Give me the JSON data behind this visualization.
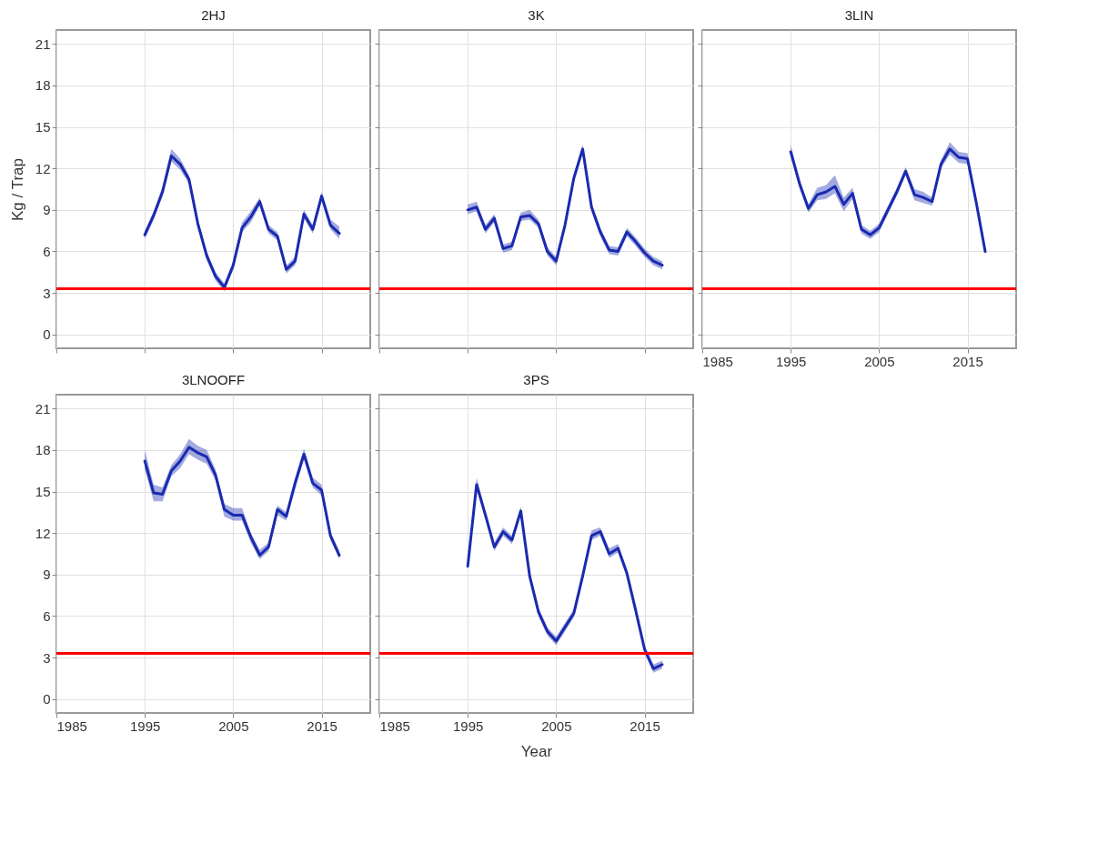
{
  "chart_data": [
    {
      "type": "line",
      "title": "2HJ",
      "ylabel": "Kg / Trap",
      "x": [
        1995,
        1996,
        1997,
        1998,
        1999,
        2000,
        2001,
        2002,
        2003,
        2004,
        2005,
        2006,
        2007,
        2008,
        2009,
        2010,
        2011,
        2012,
        2013,
        2014,
        2015,
        2016,
        2017
      ],
      "series": [
        {
          "color": "#1a2ab0",
          "values": [
            7.2,
            8.6,
            10.3,
            12.9,
            12.3,
            11.2,
            8.0,
            5.7,
            4.2,
            3.4,
            5.0,
            7.7,
            8.5,
            9.6,
            7.6,
            7.1,
            4.7,
            5.3,
            8.7,
            7.6,
            10.0,
            7.9,
            7.3
          ],
          "lower": [
            6.9,
            8.3,
            10.0,
            12.5,
            11.9,
            10.9,
            7.7,
            5.4,
            3.9,
            3.1,
            4.7,
            7.4,
            8.1,
            9.3,
            7.3,
            6.8,
            4.4,
            5.0,
            8.4,
            7.3,
            9.7,
            7.6,
            6.9
          ],
          "upper": [
            7.5,
            8.9,
            10.7,
            13.4,
            12.7,
            11.5,
            8.3,
            6.0,
            4.5,
            3.7,
            5.3,
            8.1,
            8.9,
            9.9,
            7.9,
            7.4,
            5.0,
            5.6,
            9.0,
            7.9,
            10.3,
            8.3,
            7.8
          ]
        }
      ],
      "xlim": [
        1985,
        2020.5
      ],
      "ylim": [
        -1,
        22
      ],
      "xticks": [
        1985,
        1995,
        2005,
        2015
      ],
      "yticks": [
        0,
        3,
        6,
        9,
        12,
        15,
        18,
        21
      ],
      "ref_lines": [
        {
          "axis": "y",
          "value": 3.3,
          "color": "#ff0000"
        }
      ],
      "grid": true,
      "tick_labels": "y"
    },
    {
      "type": "line",
      "title": "3K",
      "x": [
        1995,
        1996,
        1997,
        1998,
        1999,
        2000,
        2001,
        2002,
        2003,
        2004,
        2005,
        2006,
        2007,
        2008,
        2009,
        2010,
        2011,
        2012,
        2013,
        2014,
        2015,
        2016,
        2017
      ],
      "series": [
        {
          "color": "#1a2ab0",
          "values": [
            9.0,
            9.2,
            7.6,
            8.4,
            6.2,
            6.4,
            8.5,
            8.6,
            8.0,
            6.0,
            5.3,
            7.9,
            11.3,
            13.4,
            9.2,
            7.4,
            6.1,
            6.0,
            7.4,
            6.7,
            5.9,
            5.3,
            5.0
          ],
          "lower": [
            8.7,
            8.9,
            7.3,
            8.1,
            5.9,
            6.1,
            8.2,
            8.3,
            7.7,
            5.7,
            5.0,
            7.6,
            11.0,
            13.1,
            8.9,
            7.1,
            5.8,
            5.7,
            7.1,
            6.4,
            5.6,
            5.0,
            4.7
          ],
          "upper": [
            9.4,
            9.6,
            7.9,
            8.7,
            6.5,
            6.7,
            8.8,
            9.0,
            8.3,
            6.3,
            5.6,
            8.2,
            11.6,
            13.7,
            9.5,
            7.7,
            6.4,
            6.3,
            7.7,
            7.0,
            6.2,
            5.6,
            5.3
          ]
        }
      ],
      "xlim": [
        1985,
        2020.5
      ],
      "ylim": [
        -1,
        22
      ],
      "xticks": [
        1985,
        1995,
        2005,
        2015
      ],
      "yticks": [
        0,
        3,
        6,
        9,
        12,
        15,
        18,
        21
      ],
      "ref_lines": [
        {
          "axis": "y",
          "value": 3.3,
          "color": "#ff0000"
        }
      ],
      "grid": true,
      "tick_labels": false
    },
    {
      "type": "line",
      "title": "3LIN",
      "x": [
        1995,
        1996,
        1997,
        1998,
        1999,
        2000,
        2001,
        2002,
        2003,
        2004,
        2005,
        2006,
        2007,
        2008,
        2009,
        2010,
        2011,
        2012,
        2013,
        2014,
        2015,
        2016,
        2017
      ],
      "series": [
        {
          "color": "#1a2ab0",
          "values": [
            13.2,
            10.9,
            9.1,
            10.1,
            10.3,
            10.7,
            9.4,
            10.2,
            7.6,
            7.2,
            7.7,
            9.0,
            10.3,
            11.8,
            10.1,
            9.9,
            9.6,
            12.3,
            13.4,
            12.8,
            12.7,
            9.5,
            6.0
          ],
          "lower": [
            12.9,
            10.6,
            8.8,
            9.7,
            9.8,
            10.2,
            8.9,
            9.8,
            7.3,
            6.9,
            7.4,
            8.7,
            10.0,
            11.5,
            9.7,
            9.5,
            9.3,
            12.0,
            13.0,
            12.4,
            12.3,
            9.2,
            5.8
          ],
          "upper": [
            13.7,
            11.2,
            9.4,
            10.6,
            10.8,
            11.5,
            9.9,
            10.6,
            7.9,
            7.5,
            8.0,
            9.3,
            10.6,
            12.1,
            10.5,
            10.3,
            9.9,
            12.6,
            13.9,
            13.2,
            13.1,
            9.8,
            6.2
          ]
        }
      ],
      "xlim": [
        1985,
        2020.5
      ],
      "ylim": [
        -1,
        22
      ],
      "xticks": [
        1985,
        1995,
        2005,
        2015
      ],
      "yticks": [
        0,
        3,
        6,
        9,
        12,
        15,
        18,
        21
      ],
      "ref_lines": [
        {
          "axis": "y",
          "value": 3.3,
          "color": "#ff0000"
        }
      ],
      "grid": true,
      "tick_labels": "x"
    },
    {
      "type": "line",
      "title": "3LNOOFF",
      "x": [
        1995,
        1996,
        1997,
        1998,
        1999,
        2000,
        2001,
        2002,
        2003,
        2004,
        2005,
        2006,
        2007,
        2008,
        2009,
        2010,
        2011,
        2012,
        2013,
        2014,
        2015,
        2016,
        2017
      ],
      "series": [
        {
          "color": "#1a2ab0",
          "values": [
            17.2,
            14.9,
            14.8,
            16.5,
            17.2,
            18.2,
            17.8,
            17.5,
            16.2,
            13.7,
            13.3,
            13.3,
            11.7,
            10.4,
            11.0,
            13.7,
            13.2,
            15.6,
            17.7,
            15.6,
            15.1,
            11.8,
            10.4
          ],
          "lower": [
            16.6,
            14.3,
            14.3,
            16.1,
            16.7,
            17.7,
            17.3,
            17.0,
            15.8,
            13.2,
            12.9,
            12.9,
            11.3,
            10.1,
            10.7,
            13.3,
            12.9,
            15.2,
            17.3,
            15.3,
            14.7,
            11.5,
            10.1
          ],
          "upper": [
            18.0,
            15.5,
            15.3,
            16.9,
            17.7,
            18.8,
            18.3,
            18.0,
            16.6,
            14.1,
            13.8,
            13.8,
            12.0,
            10.8,
            11.3,
            14.0,
            13.5,
            16.0,
            18.1,
            16.0,
            15.5,
            12.1,
            10.7
          ]
        }
      ],
      "xlim": [
        1985,
        2020.5
      ],
      "ylim": [
        -1,
        22
      ],
      "xticks": [
        1985,
        1995,
        2005,
        2015
      ],
      "yticks": [
        0,
        3,
        6,
        9,
        12,
        15,
        18,
        21
      ],
      "ref_lines": [
        {
          "axis": "y",
          "value": 3.3,
          "color": "#ff0000"
        }
      ],
      "grid": true
    },
    {
      "type": "line",
      "title": "3PS",
      "xlabel": "Year",
      "x": [
        1995,
        1996,
        1997,
        1998,
        1999,
        2000,
        2001,
        2002,
        2003,
        2004,
        2005,
        2006,
        2007,
        2008,
        2009,
        2010,
        2011,
        2012,
        2013,
        2014,
        2015,
        2016,
        2017
      ],
      "series": [
        {
          "color": "#1a2ab0",
          "values": [
            9.6,
            15.5,
            13.3,
            11.0,
            12.1,
            11.5,
            13.6,
            8.9,
            6.3,
            4.9,
            4.2,
            5.2,
            6.2,
            8.9,
            11.8,
            12.1,
            10.5,
            10.9,
            9.1,
            6.4,
            3.6,
            2.2,
            2.5
          ],
          "lower": [
            9.4,
            15.2,
            13.0,
            10.7,
            11.8,
            11.2,
            13.3,
            8.6,
            6.0,
            4.6,
            3.9,
            4.9,
            5.9,
            8.6,
            11.5,
            11.8,
            10.2,
            10.6,
            8.8,
            6.1,
            3.3,
            1.9,
            2.2
          ],
          "upper": [
            9.9,
            16.0,
            13.6,
            11.3,
            12.4,
            11.8,
            13.9,
            9.2,
            6.6,
            5.2,
            4.5,
            5.5,
            6.5,
            9.2,
            12.2,
            12.4,
            10.9,
            11.2,
            9.4,
            6.7,
            3.9,
            2.5,
            2.8
          ]
        }
      ],
      "xlim": [
        1985,
        2020.5
      ],
      "ylim": [
        -1,
        22
      ],
      "xticks": [
        1985,
        1995,
        2005,
        2015
      ],
      "yticks": [
        0,
        3,
        6,
        9,
        12,
        15,
        18,
        21
      ],
      "ref_lines": [
        {
          "axis": "y",
          "value": 3.3,
          "color": "#ff0000"
        }
      ],
      "grid": true,
      "tick_labels": "x"
    }
  ]
}
